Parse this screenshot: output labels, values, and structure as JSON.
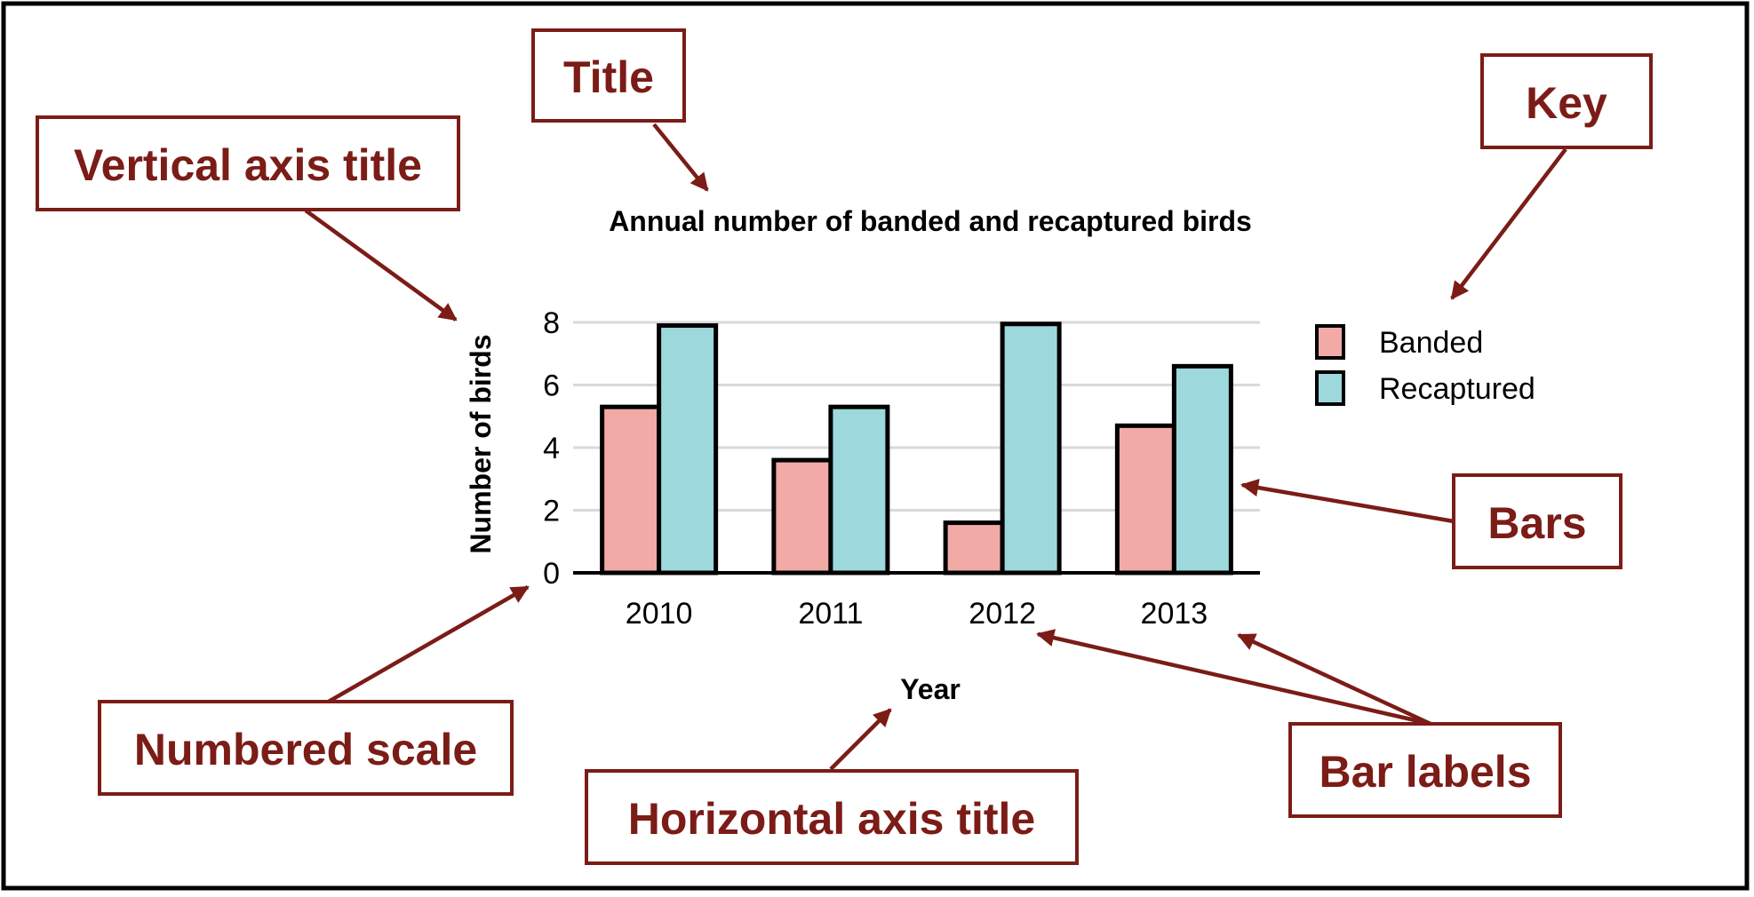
{
  "chart_data": {
    "type": "bar",
    "title": "Annual number of banded and recaptured birds",
    "xlabel": "Year",
    "ylabel": "Number of birds",
    "categories": [
      "2010",
      "2011",
      "2012",
      "2013"
    ],
    "yticks": [
      "0",
      "2",
      "4",
      "6",
      "8"
    ],
    "ylim": [
      0,
      8
    ],
    "grid": true,
    "legend_position": "right",
    "series": [
      {
        "name": "Banded",
        "color": "#f2aaa6",
        "values": [
          5.3,
          3.6,
          1.6,
          4.7
        ]
      },
      {
        "name": "Recaptured",
        "color": "#9dd8dd",
        "values": [
          7.9,
          5.3,
          7.95,
          6.6
        ]
      }
    ]
  },
  "callouts": {
    "title": "Title",
    "vertical_axis_title": "Vertical axis title",
    "key": "Key",
    "bars": "Bars",
    "numbered_scale": "Numbered scale",
    "horizontal_axis_title": "Horizontal axis title",
    "bar_labels": "Bar labels"
  },
  "colors": {
    "callout": "#7b1c17",
    "grid": "#d9d9d9"
  }
}
